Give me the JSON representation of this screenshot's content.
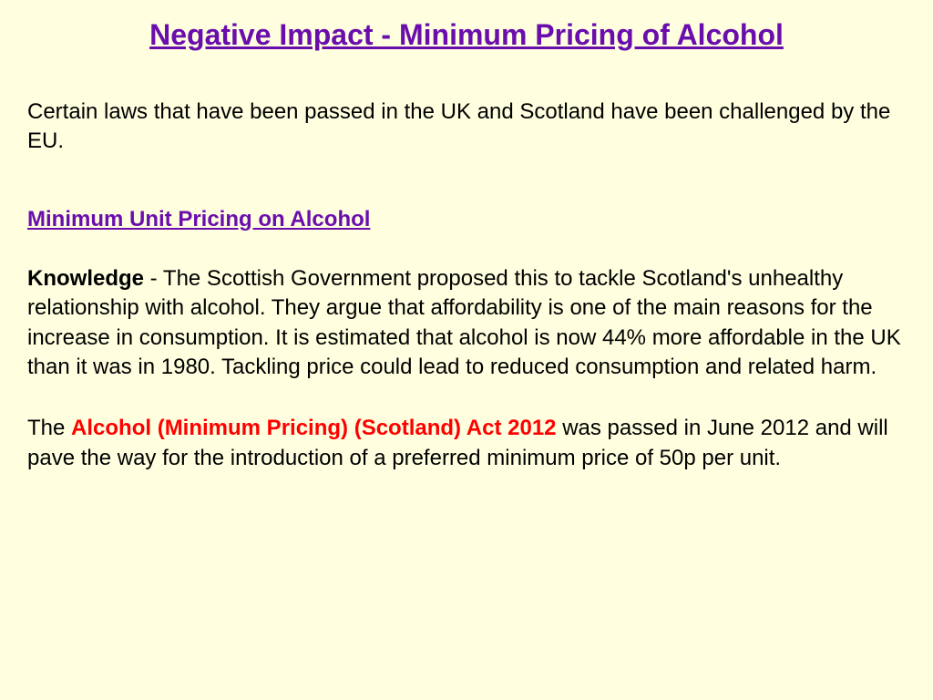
{
  "slide": {
    "title": "Negative Impact - Minimum Pricing of Alcohol",
    "intro": "Certain laws that have been passed in the UK and Scotland have been challenged by the EU.",
    "subheading": "Minimum Unit Pricing on Alcohol",
    "knowledge_label": "Knowledge",
    "knowledge_text": " - The Scottish Government proposed this to tackle Scotland's unhealthy relationship with alcohol.  They argue that affordability is one of the main reasons for the increase in consumption. It is estimated that alcohol is now 44% more affordable in the UK than it was in 1980. Tackling price could lead to reduced consumption and related harm.",
    "para2_pre": "The ",
    "act_name": "Alcohol (Minimum Pricing) (Scotland) Act 2012",
    "para2_post": " was passed in June 2012 and will pave the way for the introduction of a preferred minimum price of 50p per unit."
  },
  "colors": {
    "background": "#ffffe0",
    "title": "#6a0dad",
    "body_text": "#000000",
    "highlight": "#ff0000"
  },
  "typography": {
    "font_family": "Comic Sans MS",
    "title_size": 32,
    "body_size": 24
  }
}
